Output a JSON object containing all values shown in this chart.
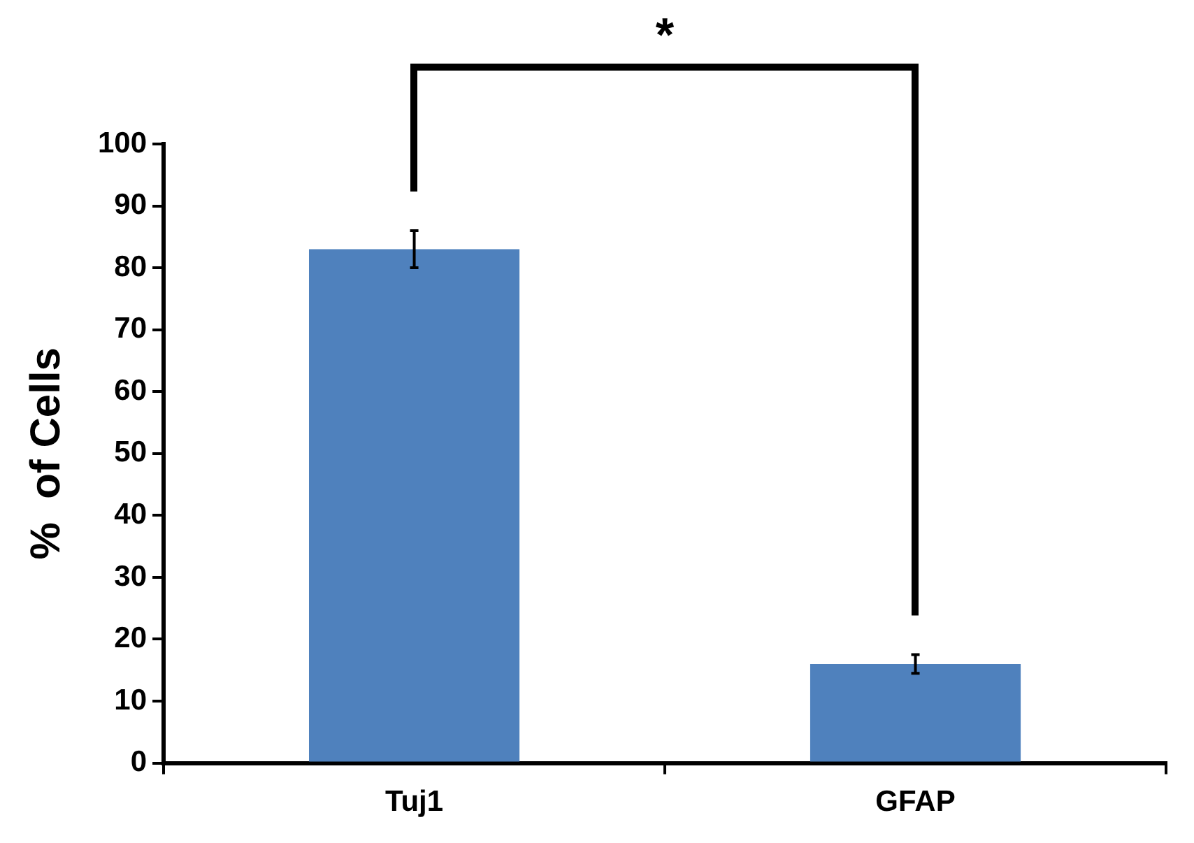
{
  "chart_data": {
    "type": "bar",
    "ylabel": "%  of Cells",
    "categories": [
      "Tuj1",
      "GFAP"
    ],
    "values": [
      83,
      16
    ],
    "errors": [
      3,
      1.5
    ],
    "color": "#4f81bd",
    "ylim": [
      0,
      100
    ],
    "yticks": [
      0,
      10,
      20,
      30,
      40,
      50,
      60,
      70,
      80,
      90,
      100
    ],
    "annotations": [
      "*"
    ]
  }
}
